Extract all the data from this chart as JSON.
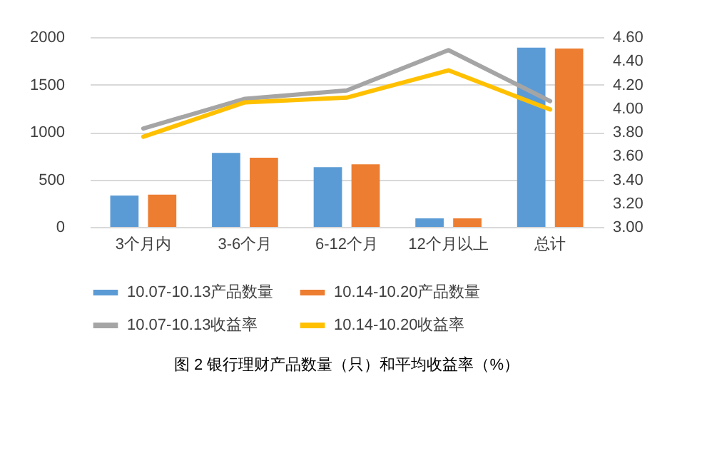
{
  "chart_data": {
    "type": "bar",
    "title": "图 2 银行理财产品数量（只）和平均收益率（%）",
    "categories": [
      "3个月内",
      "3-6个月",
      "6-12个月",
      "12个月以上",
      "总计"
    ],
    "series": [
      {
        "name": "10.07-10.13产品数量",
        "color": "#5b9bd5",
        "values": [
          330,
          780,
          630,
          90,
          1890
        ]
      },
      {
        "name": "10.14-10.20产品数量",
        "color": "#ed7d31",
        "values": [
          340,
          730,
          660,
          90,
          1880
        ]
      },
      {
        "name": "10.07-10.13收益率",
        "type": "line",
        "axis": "y2",
        "color": "#a5a5a5",
        "values": [
          3.83,
          4.08,
          4.15,
          4.49,
          4.06
        ]
      },
      {
        "name": "10.14-10.20收益率",
        "type": "line",
        "axis": "y2",
        "color": "#ffc000",
        "values": [
          3.76,
          4.05,
          4.09,
          4.32,
          3.99
        ]
      }
    ],
    "ylim": [
      0,
      2000
    ],
    "yticks": [
      0,
      500,
      1000,
      1500,
      2000
    ],
    "y2lim": [
      3.0,
      4.6
    ],
    "y2ticks": [
      {
        "value": 3.0,
        "label": "3.00"
      },
      {
        "value": 3.2,
        "label": "3.20"
      },
      {
        "value": 3.4,
        "label": "3.40"
      },
      {
        "value": 3.6,
        "label": "3.60"
      },
      {
        "value": 3.8,
        "label": "3.80"
      },
      {
        "value": 4.0,
        "label": "4.00"
      },
      {
        "value": 4.2,
        "label": "4.20"
      },
      {
        "value": 4.4,
        "label": "4.40"
      },
      {
        "value": 4.6,
        "label": "4.60"
      }
    ],
    "grid": true,
    "legend": "bottom"
  }
}
